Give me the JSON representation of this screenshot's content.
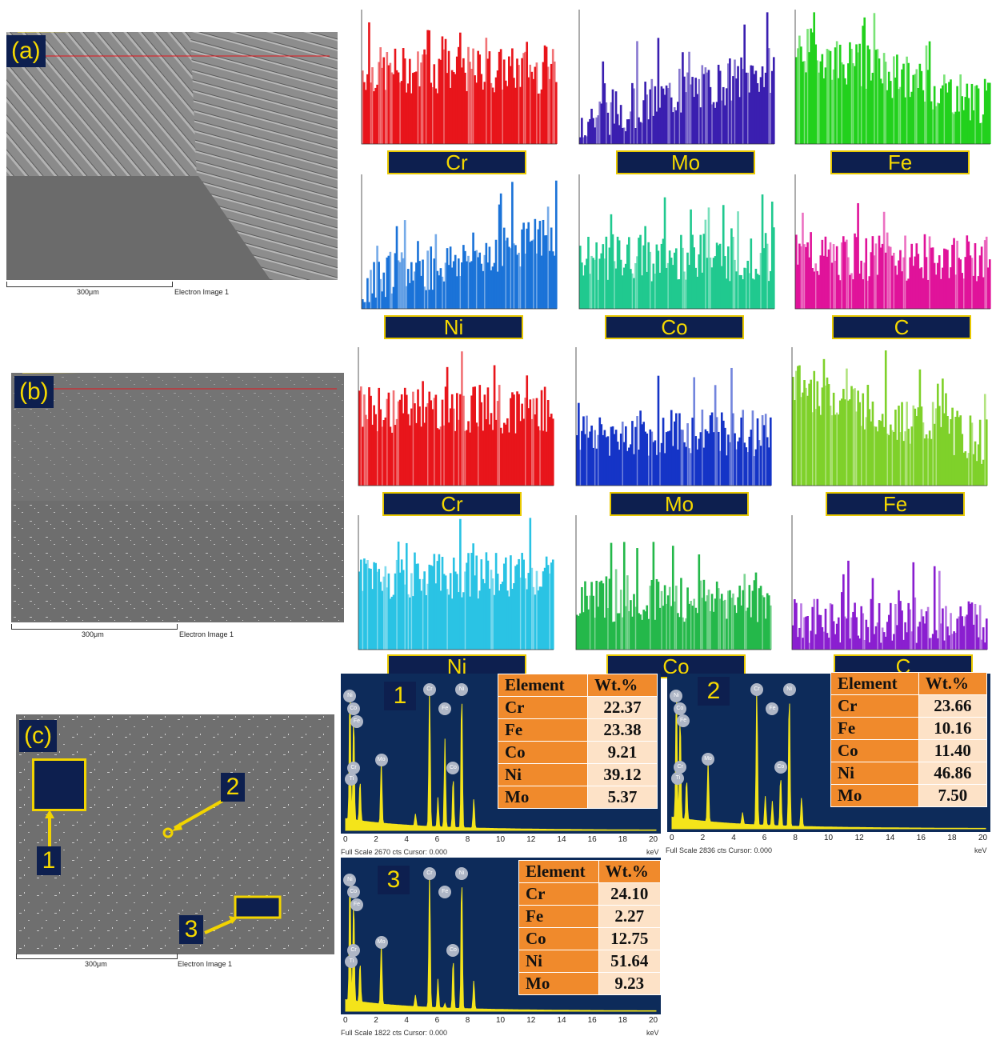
{
  "panel_labels": {
    "a": "(a)",
    "b": "(b)",
    "c": "(c)"
  },
  "sem": {
    "scale_text": "300μm",
    "image_label": "Electron Image 1"
  },
  "linescan_a": {
    "elements": [
      {
        "name": "Cr",
        "color": "#e8151b",
        "profile": "flat-high"
      },
      {
        "name": "Mo",
        "color": "#3a1fb0",
        "profile": "low-rising"
      },
      {
        "name": "Fe",
        "color": "#22d11d",
        "profile": "high-falling"
      },
      {
        "name": "Ni",
        "color": "#1b73d8",
        "profile": "low-rising"
      },
      {
        "name": "Co",
        "color": "#20c98f",
        "profile": "flat-mid"
      },
      {
        "name": "C",
        "color": "#e0139a",
        "profile": "flat-mid"
      }
    ]
  },
  "linescan_b": {
    "elements": [
      {
        "name": "Cr",
        "color": "#e8151b",
        "profile": "flat-high"
      },
      {
        "name": "Mo",
        "color": "#1534c7",
        "profile": "flat-mid"
      },
      {
        "name": "Fe",
        "color": "#7fd12a",
        "profile": "high-falling"
      },
      {
        "name": "Ni",
        "color": "#2ac3e4",
        "profile": "flat-high"
      },
      {
        "name": "Co",
        "color": "#24b84a",
        "profile": "flat-mid"
      },
      {
        "name": "C",
        "color": "#8a1fd0",
        "profile": "flat-low"
      }
    ]
  },
  "markers_c": [
    "1",
    "2",
    "3"
  ],
  "spectra": [
    {
      "number": "1",
      "footer": "Full Scale 2670 cts Cursor: 0.000",
      "table_header": [
        "Element",
        "Wt.%"
      ],
      "rows": [
        [
          "Cr",
          "22.37"
        ],
        [
          "Fe",
          "23.38"
        ],
        [
          "Co",
          "9.21"
        ],
        [
          "Ni",
          "39.12"
        ],
        [
          "Mo",
          "5.37"
        ]
      ]
    },
    {
      "number": "2",
      "footer": "Full Scale 2836 cts Cursor: 0.000",
      "table_header": [
        "Element",
        "Wt.%"
      ],
      "rows": [
        [
          "Cr",
          "23.66"
        ],
        [
          "Fe",
          "10.16"
        ],
        [
          "Co",
          "11.40"
        ],
        [
          "Ni",
          "46.86"
        ],
        [
          "Mo",
          "7.50"
        ]
      ]
    },
    {
      "number": "3",
      "footer": "Full Scale 1822 cts Cursor: 0.000",
      "table_header": [
        "Element",
        "Wt.%"
      ],
      "rows": [
        [
          "Cr",
          "24.10"
        ],
        [
          "Fe",
          "2.27"
        ],
        [
          "Co",
          "12.75"
        ],
        [
          "Ni",
          "51.64"
        ],
        [
          "Mo",
          "9.23"
        ]
      ]
    }
  ],
  "spectrum_axis": {
    "ticks": [
      "0",
      "2",
      "4",
      "6",
      "8",
      "10",
      "12",
      "14",
      "16",
      "18",
      "20"
    ],
    "unit": "keV"
  },
  "spectrum_peaks": [
    "Ni",
    "Co",
    "Fe",
    "Cr",
    "Ti",
    "Mo",
    "Cr",
    "Fe",
    "Co",
    "Ni"
  ]
}
